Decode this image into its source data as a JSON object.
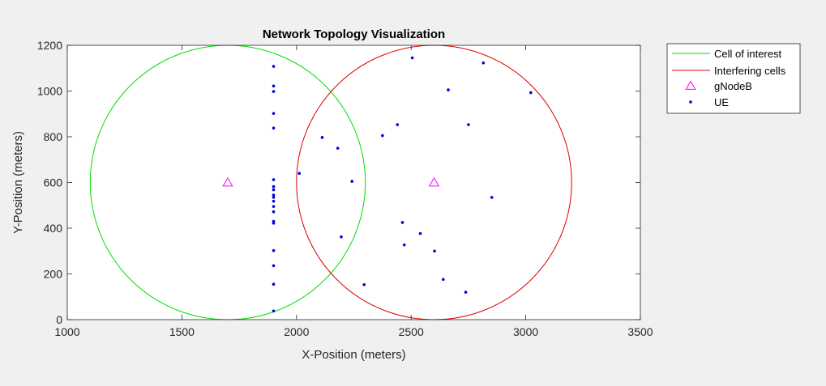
{
  "chart_data": {
    "type": "scatter",
    "title": "Network Topology Visualization",
    "xlabel": "X-Position (meters)",
    "ylabel": "Y-Position (meters)",
    "xlim": [
      1000,
      3500
    ],
    "ylim": [
      0,
      1200
    ],
    "xticks": [
      1000,
      1500,
      2000,
      2500,
      3000,
      3500
    ],
    "yticks": [
      0,
      200,
      400,
      600,
      800,
      1000,
      1200
    ],
    "grid": false,
    "legend_position": "outside-top-right",
    "legend": [
      {
        "label": "Cell of interest",
        "kind": "line",
        "color": "#00dd00"
      },
      {
        "label": "Interfering cells",
        "kind": "line",
        "color": "#dd0000"
      },
      {
        "label": "gNodeB",
        "kind": "triangle",
        "color": "#ff00ff"
      },
      {
        "label": "UE",
        "kind": "dot",
        "color": "#0000dd"
      }
    ],
    "cells": [
      {
        "series": "Cell of interest",
        "center": [
          1700,
          600
        ],
        "radius": 600,
        "color": "#00dd00"
      },
      {
        "series": "Interfering cells",
        "center": [
          2600,
          600
        ],
        "radius": 600,
        "color": "#dd0000"
      }
    ],
    "gnodeb": {
      "name": "gNodeB",
      "color": "#ff00ff",
      "points": [
        [
          1700,
          600
        ],
        [
          2600,
          600
        ]
      ]
    },
    "ue": {
      "name": "UE",
      "color": "#0000dd",
      "points": [
        [
          1900,
          1108
        ],
        [
          1900,
          1022
        ],
        [
          1900,
          998
        ],
        [
          1900,
          902
        ],
        [
          1900,
          838
        ],
        [
          1900,
          612
        ],
        [
          1900,
          582
        ],
        [
          1900,
          568
        ],
        [
          1900,
          545
        ],
        [
          1900,
          535
        ],
        [
          1900,
          518
        ],
        [
          1900,
          495
        ],
        [
          1900,
          472
        ],
        [
          1900,
          430
        ],
        [
          1900,
          422
        ],
        [
          1900,
          302
        ],
        [
          1900,
          236
        ],
        [
          1900,
          155
        ],
        [
          1900,
          38
        ],
        [
          2112,
          797
        ],
        [
          2180,
          750
        ],
        [
          2012,
          640
        ],
        [
          2242,
          605
        ],
        [
          2195,
          362
        ],
        [
          2295,
          153
        ],
        [
          2375,
          805
        ],
        [
          2440,
          853
        ],
        [
          2462,
          425
        ],
        [
          2470,
          327
        ],
        [
          2540,
          377
        ],
        [
          2505,
          1145
        ],
        [
          2662,
          1005
        ],
        [
          2750,
          853
        ],
        [
          2815,
          1123
        ],
        [
          3022,
          993
        ],
        [
          2852,
          535
        ],
        [
          2602,
          300
        ],
        [
          2640,
          176
        ],
        [
          2738,
          120
        ]
      ]
    }
  }
}
